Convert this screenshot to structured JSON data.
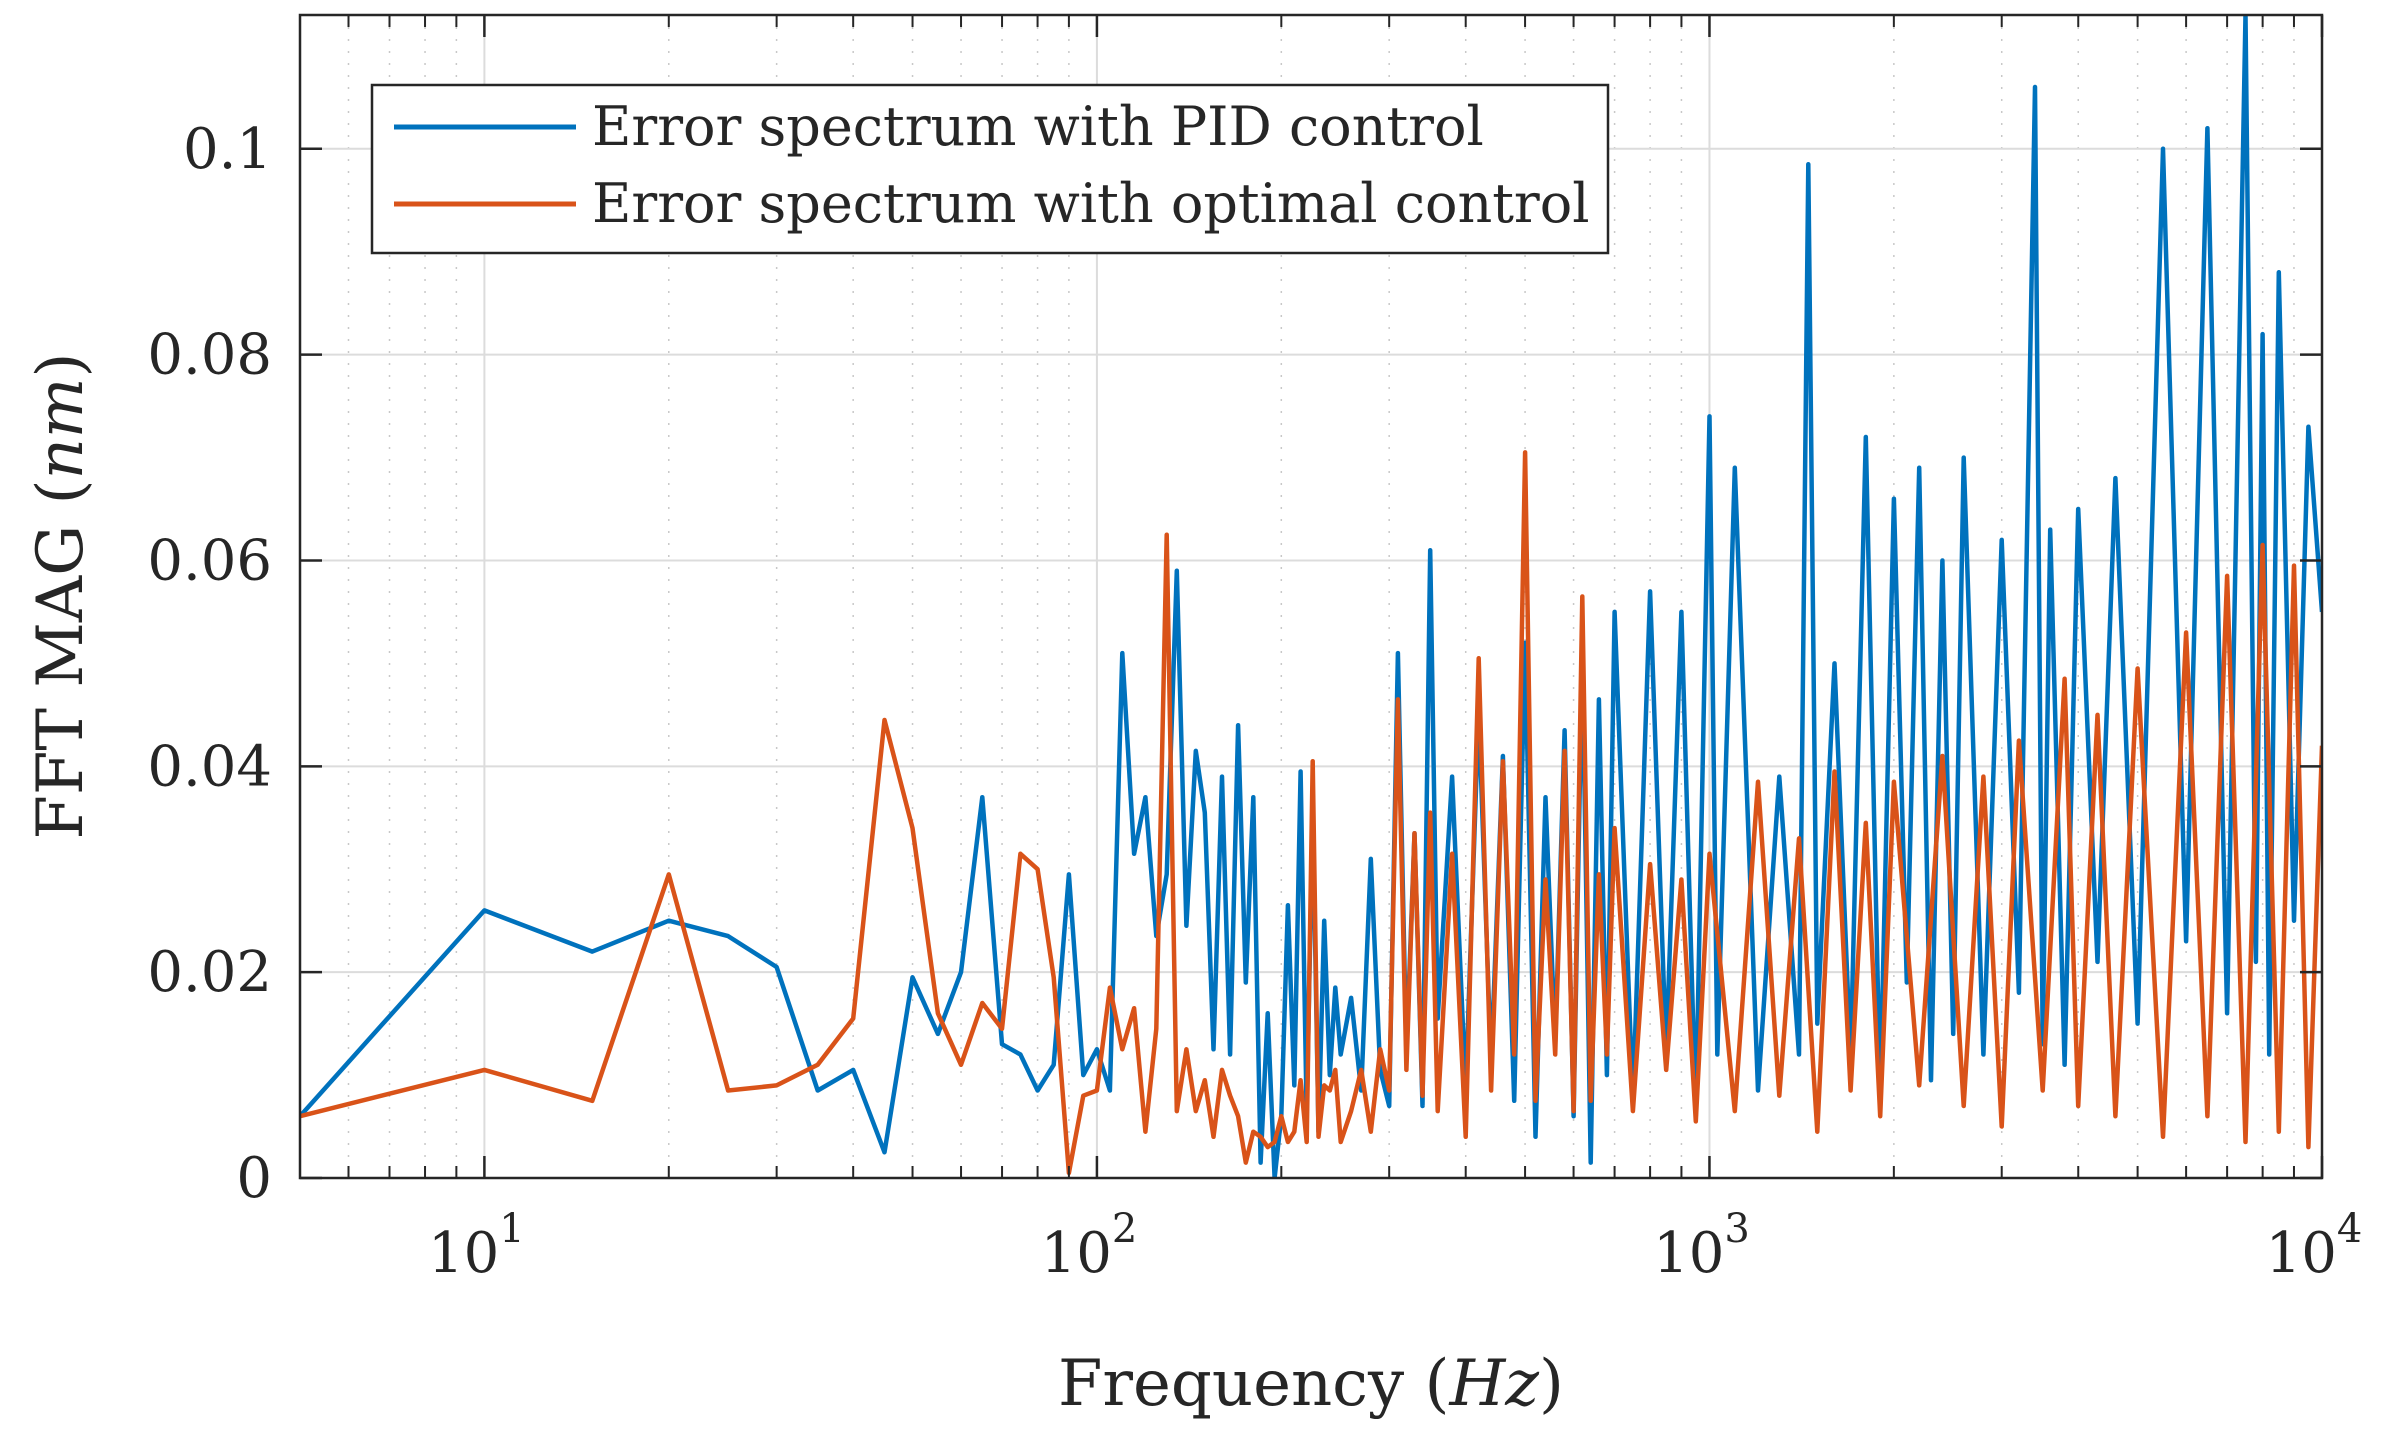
{
  "chart_data": {
    "type": "line",
    "xlabel": "Frequency",
    "xlabel_unit": "Hz",
    "ylabel": "FFT MAG",
    "ylabel_unit": "nm",
    "x_scale": "log",
    "xlim": [
      5,
      10000
    ],
    "ylim": [
      0,
      0.113
    ],
    "grid": true,
    "legend_position": "top-left",
    "x_ticks": [
      {
        "value": 10,
        "base": "10",
        "exp": "1"
      },
      {
        "value": 100,
        "base": "10",
        "exp": "2"
      },
      {
        "value": 1000,
        "base": "10",
        "exp": "3"
      },
      {
        "value": 10000,
        "base": "10",
        "exp": "4"
      }
    ],
    "y_ticks": [
      {
        "value": 0,
        "label": "0"
      },
      {
        "value": 0.02,
        "label": "0.02"
      },
      {
        "value": 0.04,
        "label": "0.04"
      },
      {
        "value": 0.06,
        "label": "0.06"
      },
      {
        "value": 0.08,
        "label": "0.08"
      },
      {
        "value": 0.1,
        "label": "0.1"
      }
    ],
    "series": [
      {
        "name": "Error spectrum with PID control",
        "color": "#0072BD",
        "x": [
          5,
          10,
          15,
          20,
          25,
          30,
          35,
          40,
          45,
          50,
          55,
          60,
          65,
          70,
          75,
          80,
          85,
          90,
          95,
          100,
          105,
          110,
          115,
          120,
          125,
          130,
          135,
          140,
          145,
          150,
          155,
          160,
          165,
          170,
          175,
          180,
          185,
          190,
          195,
          200,
          205,
          210,
          215,
          220,
          225,
          230,
          235,
          240,
          245,
          250,
          260,
          270,
          280,
          290,
          300,
          310,
          320,
          330,
          340,
          350,
          360,
          380,
          400,
          420,
          440,
          460,
          480,
          500,
          520,
          540,
          560,
          580,
          600,
          620,
          640,
          660,
          680,
          700,
          750,
          800,
          850,
          900,
          950,
          1000,
          1030,
          1100,
          1200,
          1300,
          1400,
          1450,
          1500,
          1600,
          1700,
          1800,
          1900,
          2000,
          2100,
          2200,
          2300,
          2400,
          2500,
          2600,
          2800,
          3000,
          3200,
          3400,
          3500,
          3600,
          3800,
          4000,
          4300,
          4600,
          5000,
          5500,
          6000,
          6500,
          7000,
          7500,
          7800,
          8000,
          8200,
          8500,
          9000,
          9500,
          10000
        ],
        "values": [
          0.006,
          0.026,
          0.022,
          0.025,
          0.0235,
          0.0205,
          0.0085,
          0.0105,
          0.0025,
          0.0195,
          0.014,
          0.02,
          0.037,
          0.013,
          0.012,
          0.0085,
          0.011,
          0.0295,
          0.01,
          0.0125,
          0.0085,
          0.051,
          0.0315,
          0.037,
          0.0235,
          0.0295,
          0.059,
          0.0245,
          0.0415,
          0.0355,
          0.0125,
          0.039,
          0.012,
          0.044,
          0.019,
          0.037,
          0.0015,
          0.016,
          0.0,
          0.006,
          0.0265,
          0.009,
          0.0395,
          0.006,
          0.036,
          0.0045,
          0.025,
          0.01,
          0.0185,
          0.012,
          0.0175,
          0.0085,
          0.031,
          0.0105,
          0.007,
          0.051,
          0.012,
          0.0335,
          0.007,
          0.061,
          0.0155,
          0.039,
          0.0085,
          0.0455,
          0.011,
          0.041,
          0.0075,
          0.052,
          0.004,
          0.037,
          0.013,
          0.0435,
          0.006,
          0.051,
          0.0015,
          0.0465,
          0.01,
          0.055,
          0.0075,
          0.057,
          0.012,
          0.055,
          0.006,
          0.074,
          0.012,
          0.069,
          0.0085,
          0.039,
          0.012,
          0.0985,
          0.015,
          0.05,
          0.0115,
          0.072,
          0.008,
          0.066,
          0.019,
          0.069,
          0.0095,
          0.06,
          0.014,
          0.07,
          0.012,
          0.062,
          0.018,
          0.106,
          0.013,
          0.063,
          0.011,
          0.065,
          0.021,
          0.068,
          0.015,
          0.1,
          0.023,
          0.102,
          0.016,
          0.113,
          0.021,
          0.082,
          0.012,
          0.088,
          0.025,
          0.073,
          0.055
        ]
      },
      {
        "name": "Error spectrum with optimal control",
        "color": "#D95319",
        "x": [
          5,
          10,
          15,
          20,
          25,
          30,
          35,
          40,
          45,
          50,
          55,
          60,
          65,
          70,
          75,
          80,
          85,
          90,
          95,
          100,
          105,
          110,
          115,
          120,
          125,
          130,
          135,
          140,
          145,
          150,
          155,
          160,
          165,
          170,
          175,
          180,
          185,
          190,
          195,
          200,
          205,
          210,
          215,
          220,
          225,
          230,
          235,
          240,
          245,
          250,
          260,
          270,
          280,
          290,
          300,
          310,
          320,
          330,
          340,
          350,
          360,
          380,
          400,
          420,
          440,
          460,
          480,
          500,
          520,
          540,
          560,
          580,
          600,
          620,
          640,
          660,
          680,
          700,
          750,
          800,
          850,
          900,
          950,
          1000,
          1100,
          1200,
          1300,
          1400,
          1500,
          1600,
          1700,
          1800,
          1900,
          2000,
          2200,
          2400,
          2600,
          2800,
          3000,
          3200,
          3500,
          3800,
          4000,
          4300,
          4600,
          5000,
          5500,
          6000,
          6500,
          7000,
          7500,
          8000,
          8500,
          9000,
          9500,
          10000
        ],
        "values": [
          0.006,
          0.0105,
          0.0075,
          0.0295,
          0.0085,
          0.009,
          0.011,
          0.0155,
          0.0445,
          0.034,
          0.016,
          0.011,
          0.017,
          0.0145,
          0.0315,
          0.03,
          0.0195,
          0.0005,
          0.008,
          0.0085,
          0.0185,
          0.0125,
          0.0165,
          0.0045,
          0.0145,
          0.0625,
          0.0065,
          0.0125,
          0.0065,
          0.0095,
          0.004,
          0.0105,
          0.008,
          0.006,
          0.0015,
          0.0045,
          0.004,
          0.003,
          0.0035,
          0.006,
          0.0035,
          0.0045,
          0.0095,
          0.0035,
          0.0405,
          0.004,
          0.009,
          0.0085,
          0.0105,
          0.0035,
          0.0065,
          0.0105,
          0.0045,
          0.0125,
          0.0085,
          0.0465,
          0.0105,
          0.0335,
          0.008,
          0.0355,
          0.0065,
          0.0315,
          0.004,
          0.0505,
          0.0085,
          0.0405,
          0.012,
          0.0705,
          0.0075,
          0.029,
          0.012,
          0.0415,
          0.0065,
          0.0565,
          0.0075,
          0.0295,
          0.012,
          0.034,
          0.0065,
          0.0305,
          0.0105,
          0.029,
          0.0055,
          0.0315,
          0.0065,
          0.0385,
          0.008,
          0.033,
          0.0045,
          0.0395,
          0.0085,
          0.0345,
          0.006,
          0.0385,
          0.009,
          0.041,
          0.007,
          0.039,
          0.005,
          0.0425,
          0.0085,
          0.0485,
          0.007,
          0.045,
          0.006,
          0.0495,
          0.004,
          0.053,
          0.006,
          0.0585,
          0.0035,
          0.0615,
          0.0045,
          0.0595,
          0.003,
          0.042
        ]
      }
    ]
  }
}
